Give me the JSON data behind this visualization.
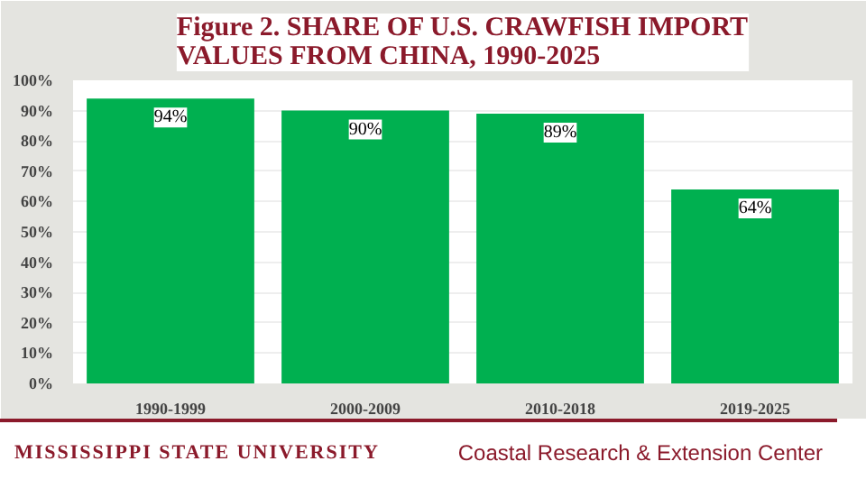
{
  "chart_data": {
    "type": "bar",
    "title": "Figure 2. SHARE OF U.S. CRAWFISH IMPORT VALUES FROM CHINA, 1990-2025",
    "categories": [
      "1990-1999",
      "2000-2009",
      "2010-2018",
      "2019-2025"
    ],
    "values": [
      94,
      90,
      89,
      64
    ],
    "color": "#00b050",
    "value_labels": [
      "94%",
      "90%",
      "89%",
      "64%"
    ],
    "ylim": [
      0,
      100
    ],
    "yticks": [
      {
        "value": 0,
        "label": "0%"
      },
      {
        "value": 10,
        "label": "10%"
      },
      {
        "value": 20,
        "label": "20%"
      },
      {
        "value": 30,
        "label": "30%"
      },
      {
        "value": 40,
        "label": "40%"
      },
      {
        "value": 50,
        "label": "50%"
      },
      {
        "value": 60,
        "label": "60%"
      },
      {
        "value": 70,
        "label": "70%"
      },
      {
        "value": 80,
        "label": "80%"
      },
      {
        "value": 90,
        "label": "90%"
      },
      {
        "value": 100,
        "label": "100%"
      }
    ],
    "grid": "y",
    "annotations": [
      "MISSISSIPPI STATE UNIVERSITY",
      "Coastal Research & Extension Center"
    ]
  }
}
